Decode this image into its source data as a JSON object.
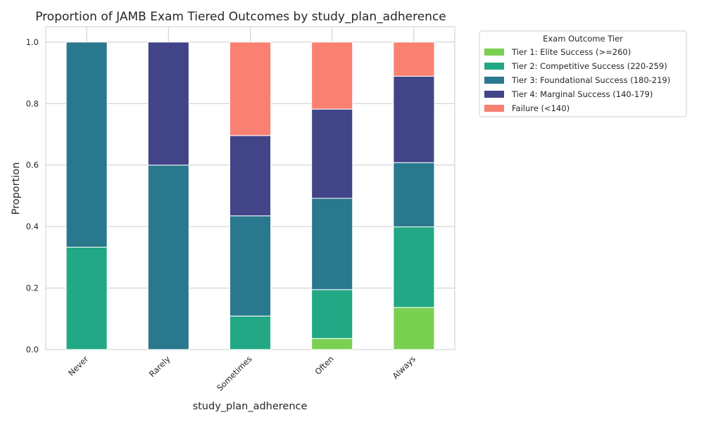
{
  "chart_data": {
    "type": "bar",
    "stacked": true,
    "title": "Proportion of JAMB Exam Tiered Outcomes by study_plan_adherence",
    "xlabel": "study_plan_adherence",
    "ylabel": "Proportion",
    "ylim": [
      0,
      1.05
    ],
    "yticks": [
      "0.0",
      "0.2",
      "0.4",
      "0.6",
      "0.8",
      "1.0"
    ],
    "grid": true,
    "legend_title": "Exam Outcome Tier",
    "legend_placement": "outside-upper-right",
    "categories": [
      "Never",
      "Rarely",
      "Sometimes",
      "Often",
      "Always"
    ],
    "series": [
      {
        "name": "Tier 1: Elite Success (>=260)",
        "color": "#7ad151",
        "values": [
          0,
          0,
          0,
          0.036,
          0.137
        ]
      },
      {
        "name": "Tier 2: Competitive Success (220-259)",
        "color": "#22a884",
        "values": [
          0.333,
          0,
          0.109,
          0.159,
          0.262
        ]
      },
      {
        "name": "Tier 3: Foundational Success (180-219)",
        "color": "#2a788e",
        "values": [
          0.667,
          0.6,
          0.326,
          0.297,
          0.209
        ]
      },
      {
        "name": "Tier 4: Marginal Success (140-179)",
        "color": "#414487",
        "values": [
          0,
          0.4,
          0.261,
          0.29,
          0.281
        ]
      },
      {
        "name": "Failure (<140)",
        "color": "#fa8072",
        "values": [
          0,
          0,
          0.304,
          0.218,
          0.111
        ]
      }
    ]
  }
}
